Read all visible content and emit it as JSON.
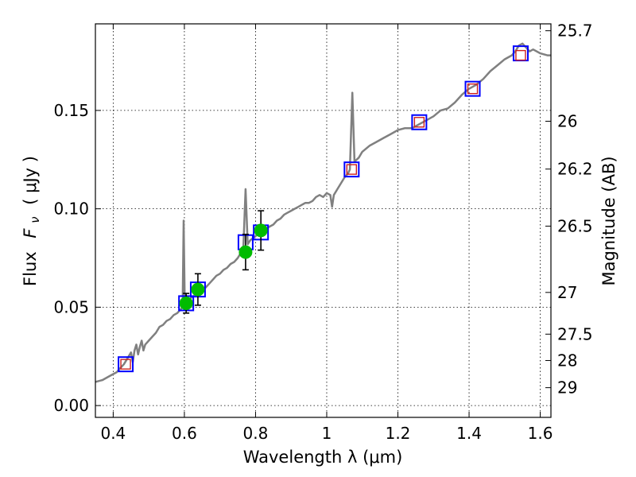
{
  "chart_data": {
    "type": "scatter",
    "xlabel": "Wavelength  λ (μm)",
    "ylabel_prefix": "Flux",
    "ylabel_symbol": "F",
    "ylabel_subscript": "ν",
    "ylabel_unit": "( μJy )",
    "y2label": "Magnitude (AB)",
    "xlim": [
      0.35,
      1.63
    ],
    "ylim": [
      -0.006,
      0.194
    ],
    "grid": true,
    "xticks": [
      0.4,
      0.6,
      0.8,
      1.0,
      1.2,
      1.4,
      1.6
    ],
    "xtick_labels": [
      "0.4",
      "0.6",
      "0.8",
      "1",
      "1.2",
      "1.4",
      "1.6"
    ],
    "yticks": [
      0.0,
      0.05,
      0.1,
      0.15
    ],
    "ytick_labels": [
      "0.00",
      "0.05",
      "0.10",
      "0.15"
    ],
    "y2ticks": [
      {
        "label": "25.7",
        "flux": 0.1905
      },
      {
        "label": "26",
        "flux": 0.1445
      },
      {
        "label": "26.2",
        "flux": 0.1202
      },
      {
        "label": "26.5",
        "flux": 0.0912
      },
      {
        "label": "27",
        "flux": 0.0575
      },
      {
        "label": "27.5",
        "flux": 0.0363
      },
      {
        "label": "28",
        "flux": 0.0229
      },
      {
        "label": "29",
        "flux": 0.0091
      }
    ],
    "colors": {
      "model": "#808080",
      "phot_model": "#0000ff",
      "phot_obs_box": "#cc1f1f",
      "detection": "#00bb00",
      "errorbar": "#000000"
    },
    "series": [
      {
        "kind": "line",
        "points": [
          [
            0.35,
            0.012
          ],
          [
            0.37,
            0.013
          ],
          [
            0.39,
            0.015
          ],
          [
            0.41,
            0.017
          ],
          [
            0.42,
            0.019
          ],
          [
            0.43,
            0.021
          ],
          [
            0.44,
            0.024
          ],
          [
            0.45,
            0.027
          ],
          [
            0.455,
            0.022
          ],
          [
            0.46,
            0.028
          ],
          [
            0.465,
            0.031
          ],
          [
            0.47,
            0.026
          ],
          [
            0.475,
            0.03
          ],
          [
            0.48,
            0.033
          ],
          [
            0.485,
            0.028
          ],
          [
            0.49,
            0.031
          ],
          [
            0.5,
            0.033
          ],
          [
            0.51,
            0.035
          ],
          [
            0.52,
            0.037
          ],
          [
            0.53,
            0.04
          ],
          [
            0.54,
            0.041
          ],
          [
            0.55,
            0.043
          ],
          [
            0.56,
            0.044
          ],
          [
            0.57,
            0.046
          ],
          [
            0.58,
            0.047
          ],
          [
            0.59,
            0.049
          ],
          [
            0.595,
            0.05
          ],
          [
            0.598,
            0.094
          ],
          [
            0.601,
            0.052
          ],
          [
            0.61,
            0.053
          ],
          [
            0.62,
            0.055
          ],
          [
            0.63,
            0.056
          ],
          [
            0.64,
            0.057
          ],
          [
            0.65,
            0.058
          ],
          [
            0.66,
            0.06
          ],
          [
            0.67,
            0.062
          ],
          [
            0.68,
            0.064
          ],
          [
            0.69,
            0.066
          ],
          [
            0.7,
            0.067
          ],
          [
            0.71,
            0.069
          ],
          [
            0.72,
            0.07
          ],
          [
            0.73,
            0.072
          ],
          [
            0.74,
            0.073
          ],
          [
            0.75,
            0.075
          ],
          [
            0.76,
            0.078
          ],
          [
            0.765,
            0.077
          ],
          [
            0.772,
            0.11
          ],
          [
            0.778,
            0.082
          ],
          [
            0.785,
            0.084
          ],
          [
            0.8,
            0.086
          ],
          [
            0.81,
            0.088
          ],
          [
            0.82,
            0.089
          ],
          [
            0.83,
            0.09
          ],
          [
            0.84,
            0.091
          ],
          [
            0.85,
            0.092
          ],
          [
            0.86,
            0.094
          ],
          [
            0.87,
            0.095
          ],
          [
            0.88,
            0.097
          ],
          [
            0.89,
            0.098
          ],
          [
            0.9,
            0.099
          ],
          [
            0.91,
            0.1
          ],
          [
            0.92,
            0.101
          ],
          [
            0.93,
            0.102
          ],
          [
            0.94,
            0.103
          ],
          [
            0.95,
            0.103
          ],
          [
            0.96,
            0.104
          ],
          [
            0.97,
            0.106
          ],
          [
            0.98,
            0.107
          ],
          [
            0.99,
            0.106
          ],
          [
            1.0,
            0.108
          ],
          [
            1.01,
            0.107
          ],
          [
            1.015,
            0.101
          ],
          [
            1.02,
            0.107
          ],
          [
            1.03,
            0.11
          ],
          [
            1.04,
            0.113
          ],
          [
            1.05,
            0.116
          ],
          [
            1.06,
            0.118
          ],
          [
            1.065,
            0.12
          ],
          [
            1.072,
            0.159
          ],
          [
            1.078,
            0.124
          ],
          [
            1.09,
            0.126
          ],
          [
            1.1,
            0.129
          ],
          [
            1.12,
            0.132
          ],
          [
            1.14,
            0.134
          ],
          [
            1.16,
            0.136
          ],
          [
            1.18,
            0.138
          ],
          [
            1.2,
            0.14
          ],
          [
            1.22,
            0.141
          ],
          [
            1.24,
            0.141
          ],
          [
            1.26,
            0.143
          ],
          [
            1.28,
            0.145
          ],
          [
            1.3,
            0.147
          ],
          [
            1.32,
            0.15
          ],
          [
            1.34,
            0.151
          ],
          [
            1.36,
            0.154
          ],
          [
            1.38,
            0.158
          ],
          [
            1.4,
            0.161
          ],
          [
            1.42,
            0.163
          ],
          [
            1.44,
            0.166
          ],
          [
            1.46,
            0.17
          ],
          [
            1.48,
            0.173
          ],
          [
            1.5,
            0.176
          ],
          [
            1.52,
            0.178
          ],
          [
            1.53,
            0.18
          ],
          [
            1.54,
            0.183
          ],
          [
            1.55,
            0.184
          ],
          [
            1.56,
            0.182
          ],
          [
            1.57,
            0.18
          ],
          [
            1.58,
            0.181
          ],
          [
            1.6,
            0.179
          ],
          [
            1.62,
            0.178
          ],
          [
            1.63,
            0.178
          ]
        ]
      },
      {
        "kind": "model-boxes",
        "points": [
          [
            0.435,
            0.021
          ],
          [
            0.605,
            0.052
          ],
          [
            0.638,
            0.059
          ],
          [
            0.772,
            0.083
          ],
          [
            0.815,
            0.088
          ],
          [
            1.07,
            0.12
          ],
          [
            1.26,
            0.144
          ],
          [
            1.41,
            0.161
          ],
          [
            1.545,
            0.179
          ]
        ]
      },
      {
        "kind": "nondetection-boxes",
        "points": [
          [
            0.435,
            0.021
          ],
          [
            1.07,
            0.12
          ],
          [
            1.26,
            0.144
          ],
          [
            1.41,
            0.161
          ],
          [
            1.545,
            0.178
          ]
        ]
      },
      {
        "kind": "detections",
        "points": [
          [
            0.605,
            0.052,
            0.005
          ],
          [
            0.638,
            0.059,
            0.008
          ],
          [
            0.772,
            0.078,
            0.009
          ],
          [
            0.815,
            0.089,
            0.01
          ]
        ]
      }
    ]
  }
}
